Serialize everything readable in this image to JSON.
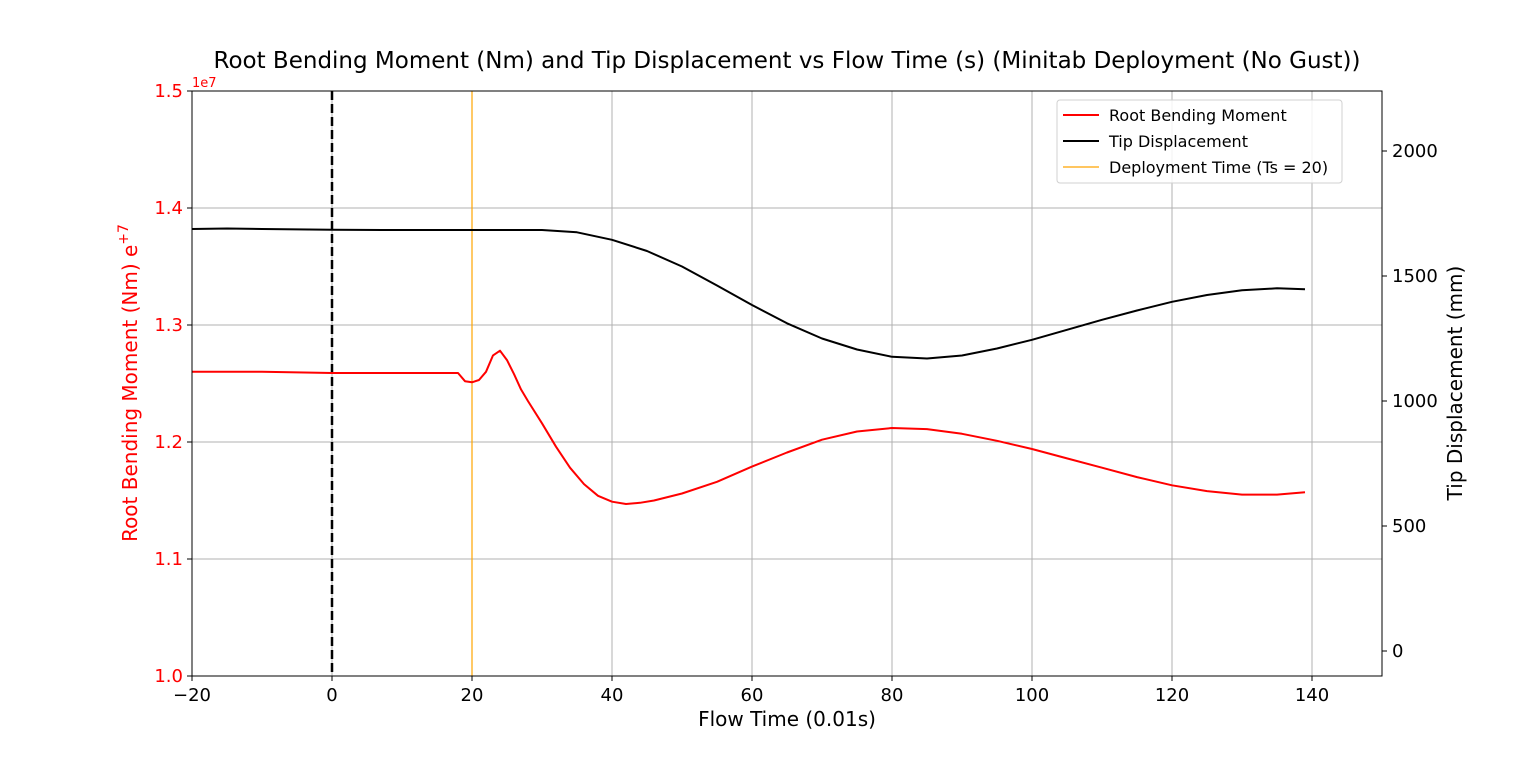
{
  "chart_data": {
    "type": "line",
    "title": "Root Bending Moment (Nm) and Tip Displacement vs Flow Time (s) (Minitab Deployment (No Gust))",
    "xlabel": "Flow Time (0.01s)",
    "ylabel_left": "Root Bending Moment (Nm) e",
    "ylabel_left_sup": "+7",
    "ylabel_right": "Tip Displacement (mm)",
    "left_offset_text": "1e7",
    "xlim": [
      -20,
      150
    ],
    "ylim_left": [
      10000000,
      15000000
    ],
    "ylim_right": [
      -100,
      2240
    ],
    "x_ticks": [
      -20,
      0,
      20,
      40,
      60,
      80,
      100,
      120,
      140
    ],
    "x_tick_labels": [
      "−20",
      "0",
      "20",
      "40",
      "60",
      "80",
      "100",
      "120",
      "140"
    ],
    "left_ticks": [
      10000000,
      11000000,
      12000000,
      13000000,
      14000000,
      15000000
    ],
    "left_tick_labels": [
      "1.0",
      "1.1",
      "1.2",
      "1.3",
      "1.4",
      "1.5"
    ],
    "right_ticks": [
      0,
      500,
      1000,
      1500,
      2000
    ],
    "right_tick_labels": [
      "0",
      "500",
      "1000",
      "1500",
      "2000"
    ],
    "grid": true,
    "legend_position": "top-right",
    "colors": {
      "root_bending": "#ff0000",
      "tip_displacement": "#000000",
      "deployment": "#ffa500",
      "zero_line": "#000000",
      "left_axis_text": "#ff0000",
      "grid": "#b0b0b0"
    },
    "series": [
      {
        "name": "Root Bending Moment",
        "axis": "left",
        "x": [
          -20,
          -15,
          -10,
          0,
          10,
          18,
          19,
          20,
          21,
          22,
          23,
          24,
          25,
          26,
          27,
          28,
          30,
          32,
          34,
          36,
          38,
          40,
          42,
          44,
          46,
          50,
          55,
          60,
          65,
          70,
          75,
          80,
          85,
          90,
          95,
          100,
          105,
          110,
          115,
          120,
          125,
          130,
          135,
          139
        ],
        "values": [
          12600000,
          12600000,
          12600000,
          12590000,
          12590000,
          12590000,
          12520000,
          12510000,
          12530000,
          12600000,
          12740000,
          12780000,
          12700000,
          12580000,
          12450000,
          12350000,
          12160000,
          11960000,
          11780000,
          11640000,
          11540000,
          11490000,
          11470000,
          11480000,
          11500000,
          11560000,
          11660000,
          11790000,
          11910000,
          12020000,
          12090000,
          12120000,
          12110000,
          12070000,
          12010000,
          11940000,
          11860000,
          11780000,
          11700000,
          11630000,
          11580000,
          11550000,
          11550000,
          11570000
        ]
      },
      {
        "name": "Tip Displacement",
        "axis": "right",
        "x": [
          -20,
          -15,
          -10,
          0,
          10,
          20,
          25,
          30,
          35,
          40,
          45,
          50,
          55,
          60,
          65,
          70,
          75,
          80,
          85,
          90,
          95,
          100,
          105,
          110,
          115,
          120,
          125,
          130,
          135,
          139
        ],
        "values": [
          1688,
          1690,
          1688,
          1685,
          1684,
          1684,
          1684,
          1684,
          1675,
          1645,
          1600,
          1538,
          1462,
          1384,
          1311,
          1250,
          1206,
          1177,
          1170,
          1182,
          1210,
          1245,
          1285,
          1325,
          1362,
          1397,
          1424,
          1443,
          1451,
          1447
        ]
      }
    ],
    "vlines": [
      {
        "name": "Deployment Time (Ts = 20)",
        "x": 20,
        "style": "solid"
      },
      {
        "name": "",
        "x": 0,
        "style": "dashed"
      }
    ],
    "legend": [
      "Root Bending Moment",
      "Tip Displacement",
      "Deployment Time (Ts = 20)"
    ]
  }
}
